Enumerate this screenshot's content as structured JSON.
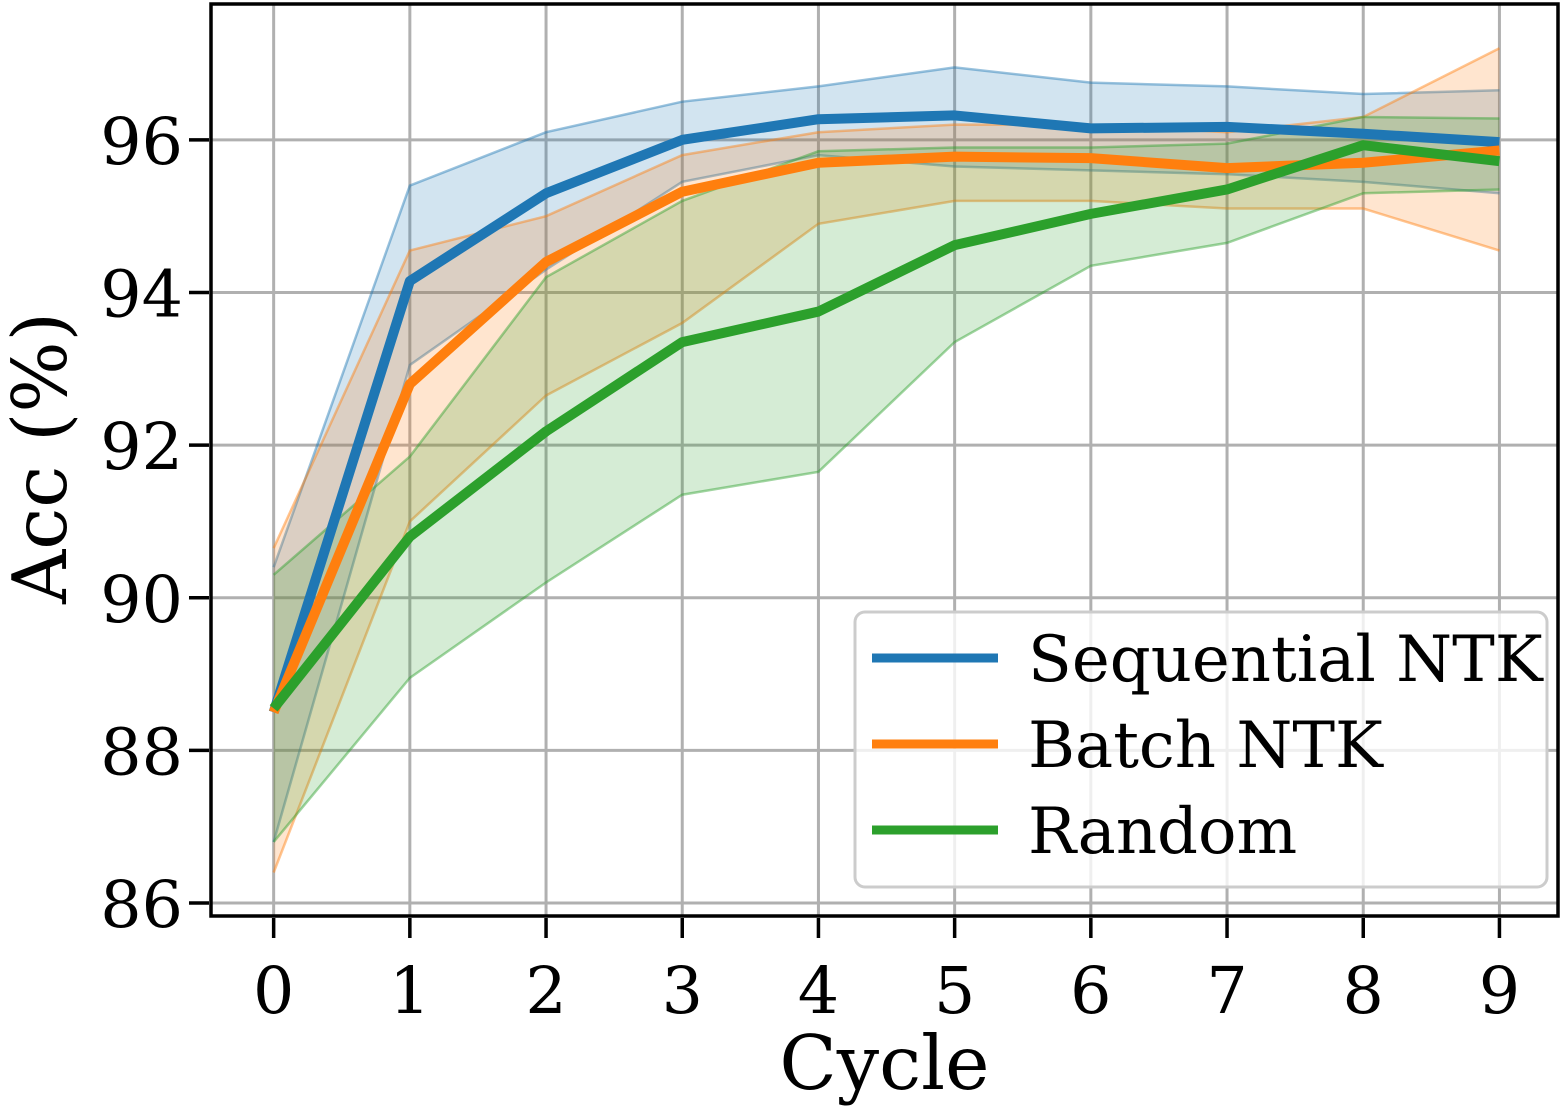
{
  "chart_data": {
    "type": "line",
    "title": "",
    "xlabel": "Cycle",
    "ylabel": "Acc (%)",
    "x": [
      0,
      1,
      2,
      3,
      4,
      5,
      6,
      7,
      8,
      9
    ],
    "xticklabels": [
      "0",
      "1",
      "2",
      "3",
      "4",
      "5",
      "6",
      "7",
      "8",
      "9"
    ],
    "yticks": [
      86,
      88,
      90,
      92,
      94,
      96
    ],
    "yticklabels": [
      "86",
      "88",
      "90",
      "92",
      "94",
      "96"
    ],
    "xlim": [
      -0.46,
      9.43
    ],
    "ylim": [
      85.83,
      97.78
    ],
    "grid": true,
    "legend_position": "lower right",
    "band_fill_opacity": 0.2,
    "band_edge_opacity": 0.45,
    "series": [
      {
        "name": "Sequential NTK",
        "color": "#1f77b4",
        "values": [
          88.5,
          94.15,
          95.3,
          96.0,
          96.27,
          96.32,
          96.15,
          96.17,
          96.08,
          95.97
        ],
        "band_lower": [
          86.8,
          93.05,
          94.3,
          95.45,
          95.8,
          95.65,
          95.6,
          95.55,
          95.45,
          95.3
        ],
        "band_upper": [
          90.4,
          95.4,
          96.1,
          96.5,
          96.7,
          96.95,
          96.75,
          96.7,
          96.6,
          96.65
        ]
      },
      {
        "name": "Batch NTK",
        "color": "#ff7f0e",
        "values": [
          88.5,
          92.8,
          94.4,
          95.32,
          95.7,
          95.78,
          95.76,
          95.63,
          95.7,
          95.86
        ],
        "band_lower": [
          86.4,
          91.0,
          92.65,
          93.6,
          94.9,
          95.2,
          95.2,
          95.1,
          95.1,
          94.55
        ],
        "band_upper": [
          90.65,
          94.55,
          95.0,
          95.8,
          96.1,
          96.2,
          96.2,
          96.1,
          96.3,
          97.2
        ]
      },
      {
        "name": "Random",
        "color": "#2ca02c",
        "values": [
          88.55,
          90.8,
          92.18,
          93.35,
          93.75,
          94.62,
          95.03,
          95.35,
          95.93,
          95.72
        ],
        "band_lower": [
          86.8,
          88.95,
          90.2,
          91.35,
          91.65,
          93.35,
          94.35,
          94.65,
          95.3,
          95.35
        ],
        "band_upper": [
          90.3,
          91.85,
          94.2,
          95.2,
          95.85,
          95.9,
          95.9,
          95.95,
          96.3,
          96.28
        ]
      }
    ]
  },
  "style": {
    "background": "#ffffff",
    "grid_color": "#b0b0b0",
    "spine_color": "#000000",
    "tick_color": "#000000",
    "legend_border_color": "#cccccc",
    "legend_background": "#ffffff"
  }
}
